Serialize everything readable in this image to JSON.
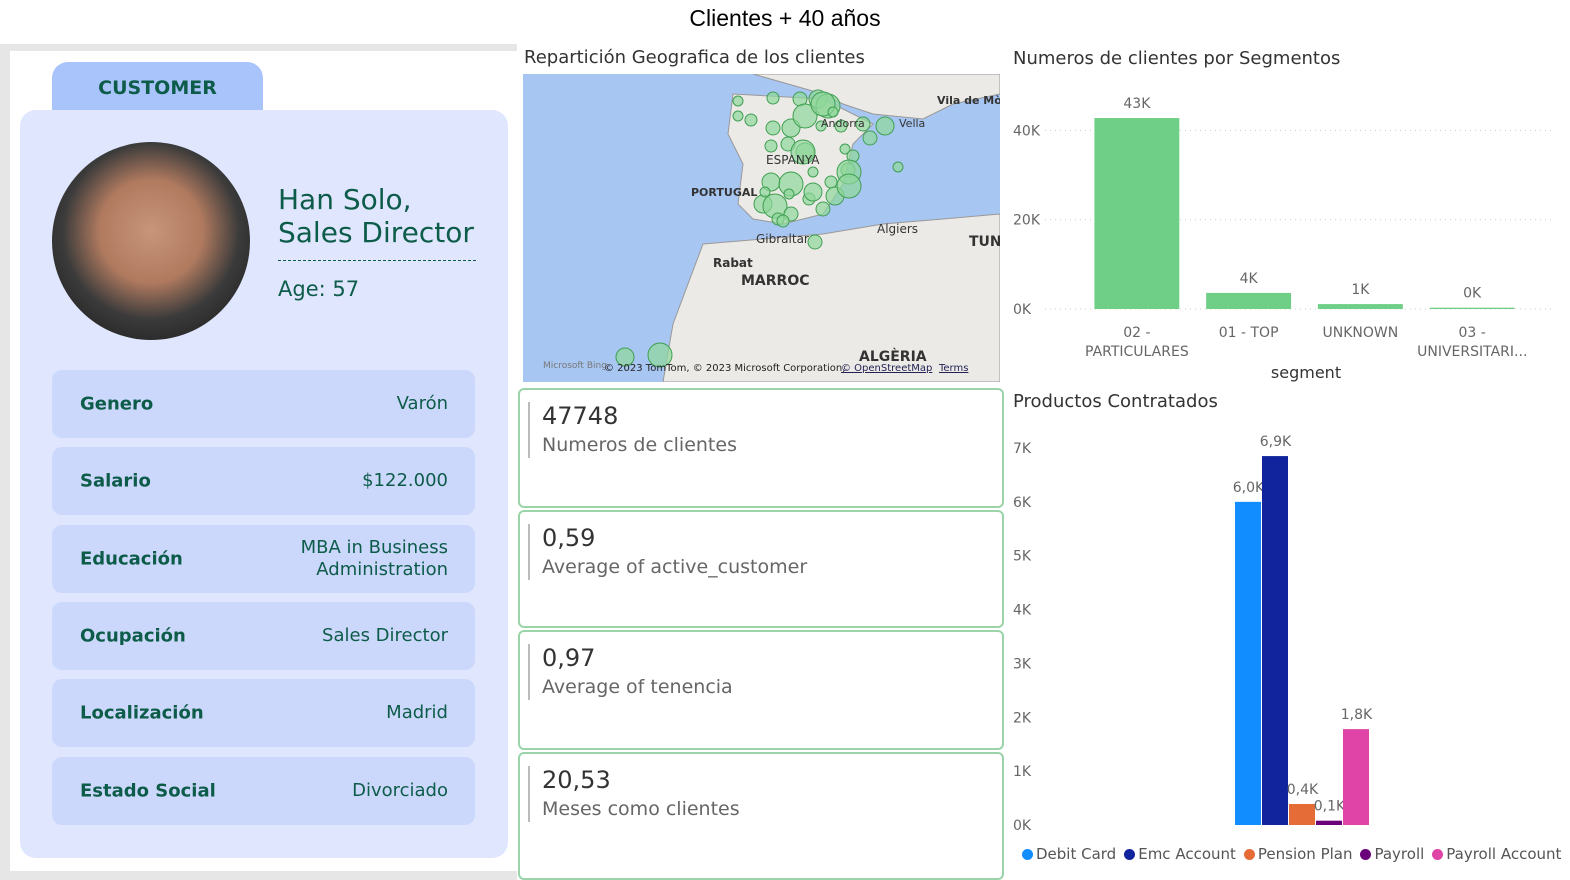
{
  "title": "Clientes + 40 años",
  "customer": {
    "tab": "CUSTOMER",
    "name_lines": [
      "Han Solo,",
      "Sales Director"
    ],
    "age": "Age: 57",
    "fields": [
      {
        "label": "Genero",
        "value": "Varón"
      },
      {
        "label": "Salario",
        "value": "$122.000"
      },
      {
        "label": "Educación",
        "value": "MBA in Business Administration"
      },
      {
        "label": "Ocupación",
        "value": "Sales Director"
      },
      {
        "label": "Localización",
        "value": "Madrid"
      },
      {
        "label": "Estado Social",
        "value": "Divorciado"
      }
    ]
  },
  "map": {
    "title": "Repartición Geografica de los clientes",
    "labels": [
      "PORTUGAL",
      "ESPANYA",
      "Andorra",
      "Vila de Mònaco",
      "Vella",
      "Gibraltar",
      "Rabat",
      "MARROC",
      "Algiers",
      "TUN",
      "ALGÈRIA"
    ],
    "credits": "© 2023 TomTom, © 2023 Microsoft Corporation,",
    "osm": "© OpenStreetMap",
    "terms": "Terms",
    "bing": "Microsoft Bing"
  },
  "kpis": [
    {
      "value": "47748",
      "label": "Numeros de clientes"
    },
    {
      "value": "0,59",
      "label": "Average of active_customer"
    },
    {
      "value": "0,97",
      "label": "Average of tenencia"
    },
    {
      "value": "20,53",
      "label": "Meses como clientes"
    }
  ],
  "chart_data": [
    {
      "type": "bar",
      "title": "Numeros de clientes por Segmentos",
      "x_label": "segment",
      "categories": [
        "02 - PARTICULARES",
        "01 - TOP",
        "UNKNOWN",
        "03 - UNIVERSITARI..."
      ],
      "values": [
        42750,
        3600,
        1100,
        298
      ],
      "value_labels": [
        "43K",
        "4K",
        "1K",
        "0K"
      ],
      "color": "#6fcf86",
      "ylim": [
        0,
        45000
      ],
      "yticks": [
        {
          "value": 0,
          "label": "0K"
        },
        {
          "value": 20000,
          "label": "20K"
        },
        {
          "value": 40000,
          "label": "40K"
        }
      ],
      "grid": true
    },
    {
      "type": "grouped-bar",
      "title": "Productos Contratados",
      "ylim": [
        0,
        7000
      ],
      "yticks": [
        {
          "value": 0,
          "label": "0K"
        },
        {
          "value": 1000,
          "label": "1K"
        },
        {
          "value": 2000,
          "label": "2K"
        },
        {
          "value": 3000,
          "label": "3K"
        },
        {
          "value": 4000,
          "label": "4K"
        },
        {
          "value": 5000,
          "label": "5K"
        },
        {
          "value": 6000,
          "label": "6K"
        },
        {
          "value": 7000,
          "label": "7K"
        }
      ],
      "grid": false,
      "series": [
        {
          "name": "Debit Card",
          "color": "#118dff",
          "values": [
            6000
          ],
          "value_labels": [
            "6,0K"
          ]
        },
        {
          "name": "Emc Account",
          "color": "#12239e",
          "values": [
            6850
          ],
          "value_labels": [
            "6,9K"
          ]
        },
        {
          "name": "Pension Plan",
          "color": "#e66c37",
          "values": [
            390
          ],
          "value_labels": [
            "0,4K"
          ]
        },
        {
          "name": "Payroll",
          "color": "#6b007b",
          "values": [
            80
          ],
          "value_labels": [
            "0,1K"
          ]
        },
        {
          "name": "Payroll Account",
          "color": "#e044a7",
          "values": [
            1780
          ],
          "value_labels": [
            "1,8K"
          ]
        }
      ]
    }
  ]
}
